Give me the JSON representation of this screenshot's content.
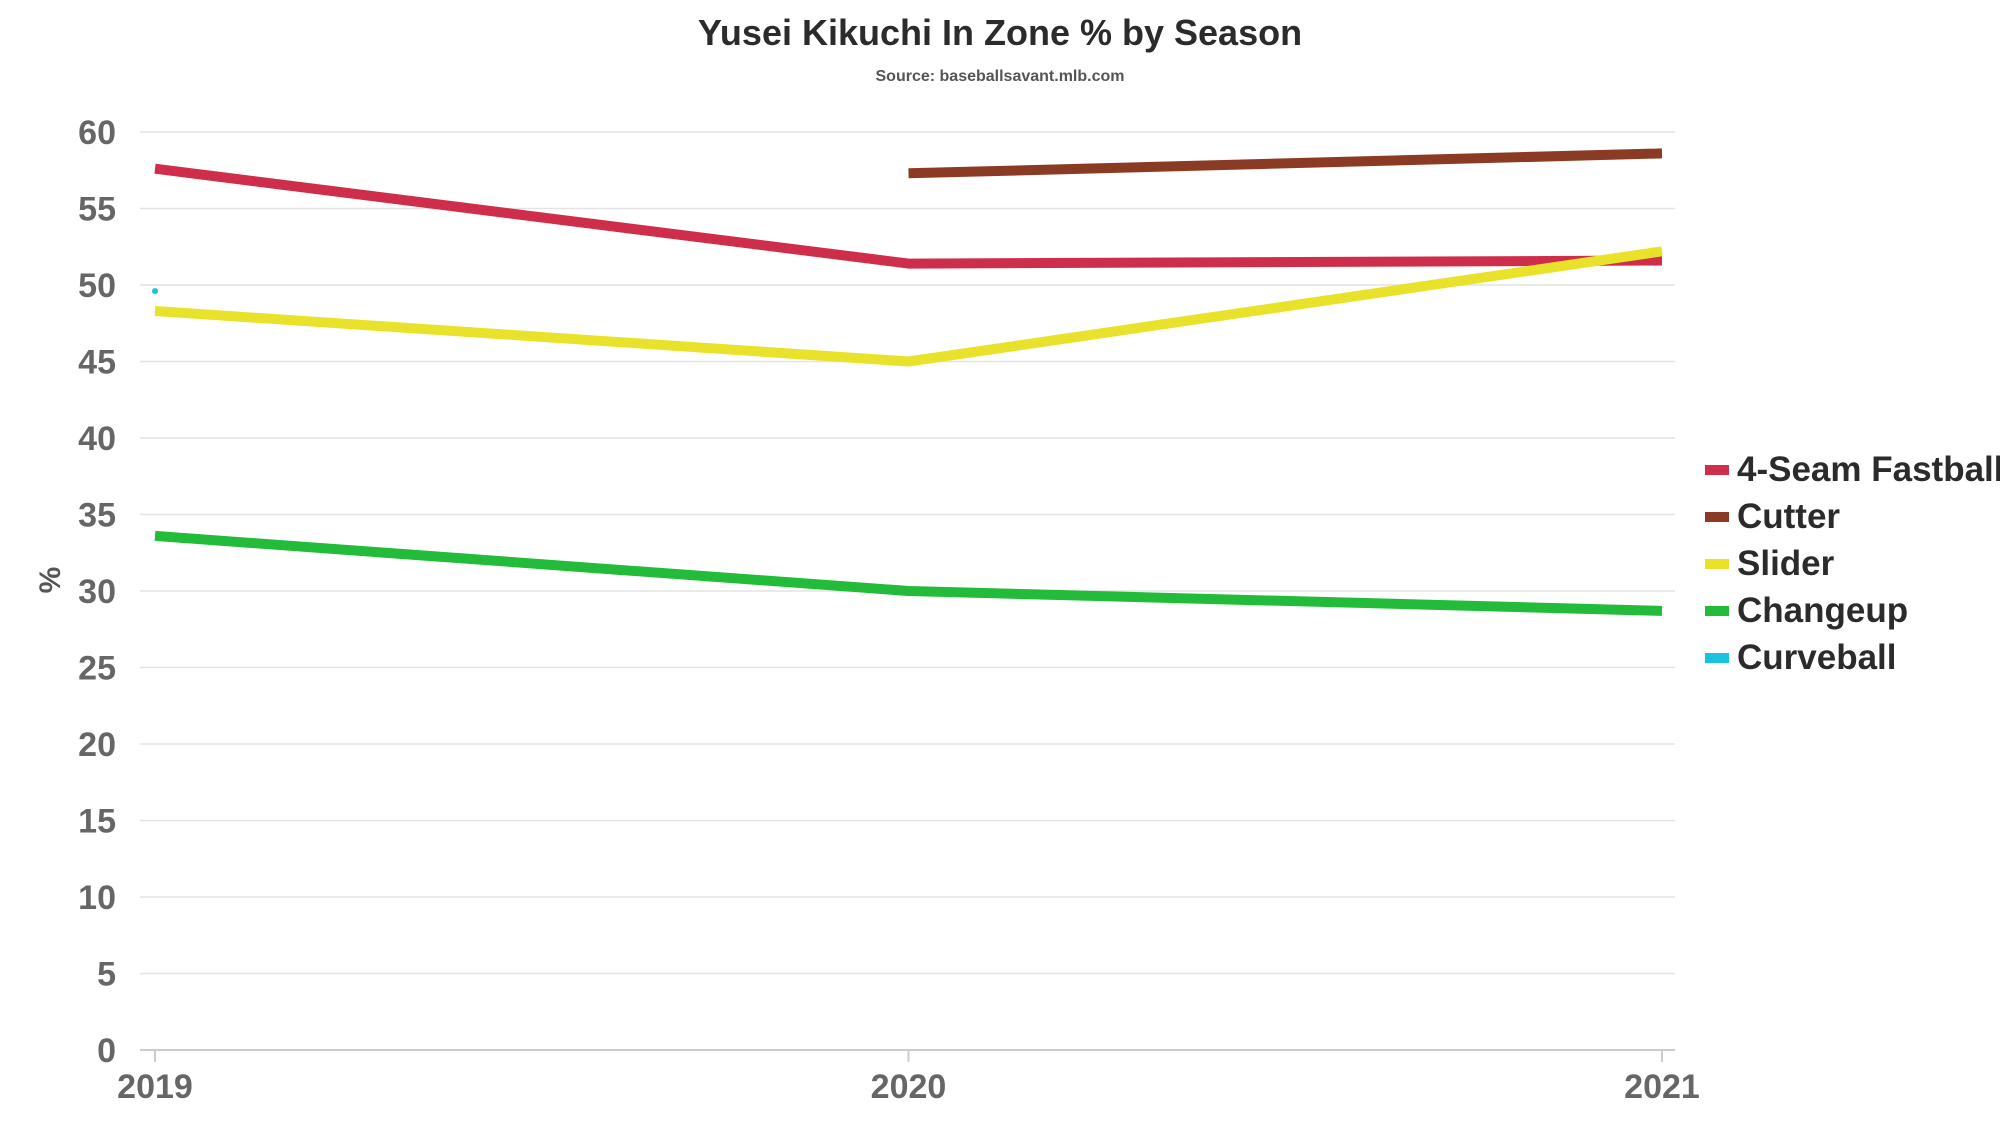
{
  "chart_data": {
    "type": "line",
    "title": "Yusei Kikuchi In Zone % by Season",
    "subtitle": "Source: baseballsavant.mlb.com",
    "ylabel": "%",
    "xlabel": "",
    "x": [
      "2019",
      "2020",
      "2021"
    ],
    "ylim": [
      0,
      60
    ],
    "yticks": [
      0,
      5,
      10,
      15,
      20,
      25,
      30,
      35,
      40,
      45,
      50,
      55,
      60
    ],
    "grid": true,
    "legend_position": "right",
    "series": [
      {
        "name": "4-Seam Fastball",
        "color": "#cf2e4a",
        "values": [
          57.6,
          51.4,
          51.6
        ]
      },
      {
        "name": "Cutter",
        "color": "#8b3a24",
        "values": [
          null,
          57.3,
          58.6
        ]
      },
      {
        "name": "Slider",
        "color": "#e9e22a",
        "values": [
          48.3,
          45.0,
          52.2
        ]
      },
      {
        "name": "Changeup",
        "color": "#22bb3a",
        "values": [
          33.6,
          30.0,
          28.7
        ]
      },
      {
        "name": "Curveball",
        "color": "#19c3e0",
        "values": [
          49.6,
          null,
          null
        ]
      }
    ]
  }
}
